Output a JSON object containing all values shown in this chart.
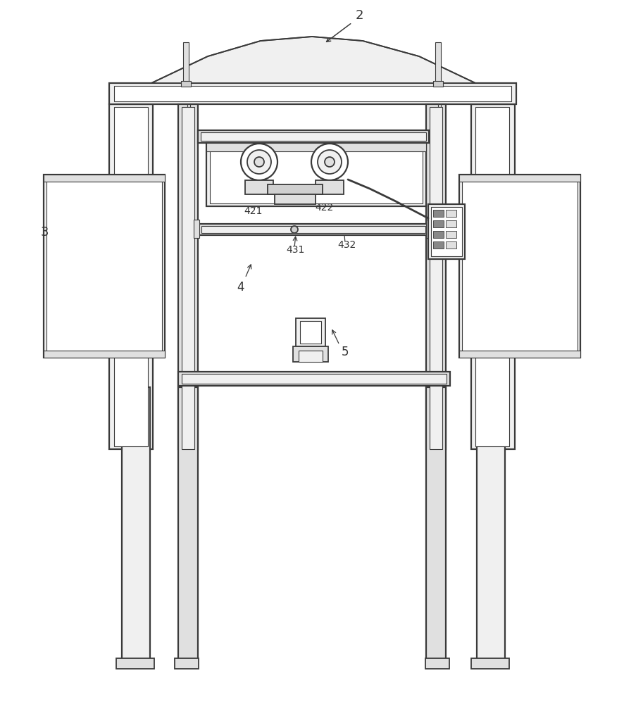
{
  "line_color": "#4a4a4a",
  "dark_line": "#3a3a3a",
  "fill_light": "#f0f0f0",
  "fill_mid": "#e0e0e0",
  "fill_dark": "#d0d0d0",
  "white": "#ffffff"
}
